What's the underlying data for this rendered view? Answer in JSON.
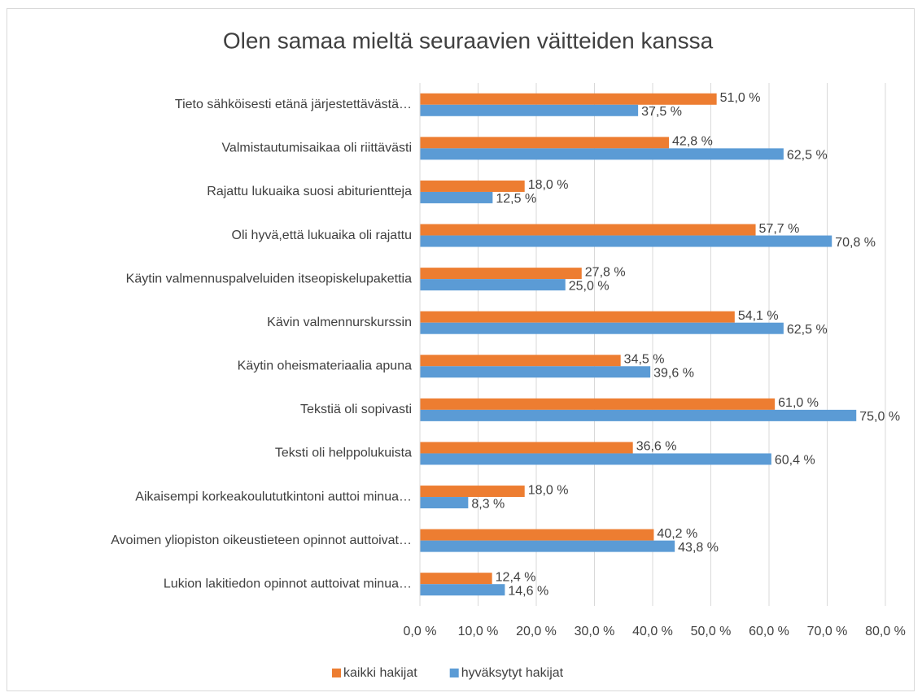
{
  "chart_data": {
    "type": "hbar",
    "title": "Olen samaa mieltä seuraavien väitteiden kanssa",
    "categories": [
      "Tieto sähköisesti etänä järjestettävästä…",
      "Valmistautumisaikaa oli riittävästi",
      "Rajattu lukuaika suosi abiturientteja",
      "Oli hyvä,että lukuaika oli rajattu",
      "Käytin valmennuspalveluiden itseopiskelupakettia",
      "Kävin valmennurskurssin",
      "Käytin oheismateriaalia apuna",
      "Tekstiä oli sopivasti",
      "Teksti oli helppolukuista",
      "Aikaisempi korkeakoulututkintoni auttoi minua…",
      "Avoimen yliopiston oikeustieteen opinnot auttoivat…",
      "Lukion lakitiedon opinnot auttoivat minua…"
    ],
    "series": [
      {
        "name": "kaikki hakijat",
        "color": "#ed7d31",
        "values": [
          51.0,
          42.8,
          18.0,
          57.7,
          27.8,
          54.1,
          34.5,
          61.0,
          36.6,
          18.0,
          40.2,
          12.4
        ],
        "value_labels": [
          "51,0 %",
          "42,8 %",
          "18,0 %",
          "57,7 %",
          "27,8 %",
          "54,1 %",
          "34,5 %",
          "61,0 %",
          "36,6 %",
          "18,0 %",
          "40,2 %",
          "12,4 %"
        ]
      },
      {
        "name": "hyväksytyt hakijat",
        "color": "#5b9bd5",
        "values": [
          37.5,
          62.5,
          12.5,
          70.8,
          25.0,
          62.5,
          39.6,
          75.0,
          60.4,
          8.3,
          43.8,
          14.6
        ],
        "value_labels": [
          "37,5 %",
          "62,5 %",
          "12,5 %",
          "70,8 %",
          "25,0 %",
          "62,5 %",
          "39,6 %",
          "75,0 %",
          "60,4 %",
          "8,3 %",
          "43,8 %",
          "14,6 %"
        ]
      }
    ],
    "xlim": [
      0,
      80
    ],
    "xticks": [
      {
        "value": 0,
        "label": "0,0 %"
      },
      {
        "value": 10,
        "label": "10,0 %"
      },
      {
        "value": 20,
        "label": "20,0 %"
      },
      {
        "value": 30,
        "label": "30,0 %"
      },
      {
        "value": 40,
        "label": "40,0 %"
      },
      {
        "value": 50,
        "label": "50,0 %"
      },
      {
        "value": 60,
        "label": "60,0 %"
      },
      {
        "value": 70,
        "label": "70,0 %"
      },
      {
        "value": 80,
        "label": "80,0 %"
      }
    ],
    "grid": true,
    "legend": "bottom"
  }
}
